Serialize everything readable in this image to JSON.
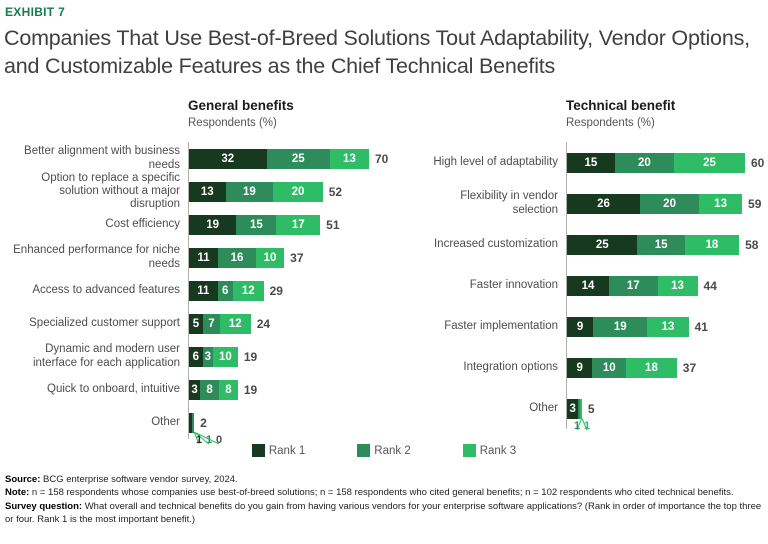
{
  "exhibit_label": "EXHIBIT 7",
  "title": "Companies That Use Best-of-Breed Solutions Tout Adaptability, Vendor Options, and Customizable Features as the Chief Technical Benefits",
  "colors": {
    "rank1": "#17391f",
    "rank2": "#2e8c5a",
    "rank3": "#2ebd66",
    "accent_green": "#177b51",
    "axis": "#b0b0b0",
    "zero_value": "#4d4d4d"
  },
  "legend": [
    {
      "label": "Rank 1",
      "color": "#17391f"
    },
    {
      "label": "Rank 2",
      "color": "#2e8c5a"
    },
    {
      "label": "Rank 3",
      "color": "#2ebd66"
    }
  ],
  "chart_data": [
    {
      "type": "bar",
      "stacked": true,
      "orientation": "horizontal",
      "title": "General benefits",
      "subtitle": "Respondents (%)",
      "series_names": [
        "Rank 1",
        "Rank 2",
        "Rank 3"
      ],
      "xmax": 70,
      "rows": [
        {
          "label": "Better alignment with business needs",
          "values": [
            32,
            25,
            13
          ],
          "total": 70
        },
        {
          "label": "Option to replace a specific solution without a major disruption",
          "values": [
            13,
            19,
            20
          ],
          "total": 52
        },
        {
          "label": "Cost efficiency",
          "values": [
            19,
            15,
            17
          ],
          "total": 51
        },
        {
          "label": "Enhanced performance for niche needs",
          "values": [
            11,
            16,
            10
          ],
          "total": 37
        },
        {
          "label": "Access to advanced features",
          "values": [
            11,
            6,
            12
          ],
          "total": 29
        },
        {
          "label": "Specialized customer support",
          "values": [
            5,
            7,
            12
          ],
          "total": 24
        },
        {
          "label": "Dynamic and modern user interface for each application",
          "values": [
            6,
            3,
            10
          ],
          "total": 19
        },
        {
          "label": "Quick to onboard, intuitive",
          "values": [
            3,
            8,
            8
          ],
          "total": 19
        },
        {
          "label": "Other",
          "values": [
            1,
            1,
            0
          ],
          "total": 2
        }
      ]
    },
    {
      "type": "bar",
      "stacked": true,
      "orientation": "horizontal",
      "title": "Technical benefit",
      "subtitle": "Respondents (%)",
      "series_names": [
        "Rank 1",
        "Rank 2",
        "Rank 3"
      ],
      "xmax": 60,
      "rows": [
        {
          "label": "High level of adaptability",
          "values": [
            15,
            20,
            25
          ],
          "total": 60
        },
        {
          "label": "Flexibility in vendor selection",
          "values": [
            26,
            20,
            13
          ],
          "total": 59
        },
        {
          "label": "Increased customization",
          "values": [
            25,
            15,
            18
          ],
          "total": 58
        },
        {
          "label": "Faster innovation",
          "values": [
            14,
            17,
            13
          ],
          "total": 44
        },
        {
          "label": "Faster implementation",
          "values": [
            9,
            19,
            13
          ],
          "total": 41
        },
        {
          "label": "Integration options",
          "values": [
            9,
            10,
            18
          ],
          "total": 37
        },
        {
          "label": "Other",
          "values": [
            3,
            1,
            1
          ],
          "total": 5
        }
      ]
    }
  ],
  "footer": {
    "source_label": "Source:",
    "source_text": " BCG enterprise software vendor survey, 2024.",
    "note_label": "Note:",
    "note_text": " n = 158 respondents whose companies use best-of-breed solutions; n = 158 respondents who cited general benefits; n = 102 respondents who cited technical benefits.",
    "survey_label": "Survey question:",
    "survey_text": " What overall and technical benefits do you gain from having various vendors for your enterprise software applications? (Rank in order of importance the top three or four. Rank 1 is the most important benefit.)"
  }
}
